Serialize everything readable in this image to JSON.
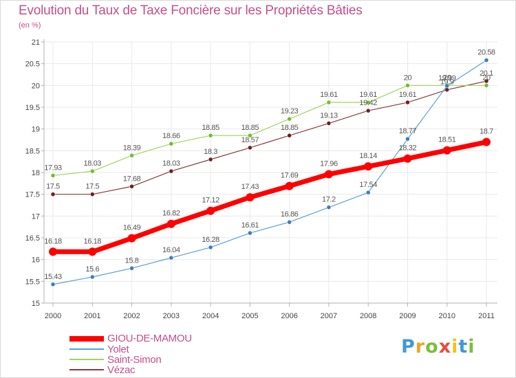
{
  "header": {
    "title": "Evolution du Taux de Taxe Foncière sur les Propriétés Bâties",
    "subtitle": "(en %)"
  },
  "brand": {
    "letters": [
      "P",
      "r",
      "o",
      "x",
      "i",
      "t",
      "i"
    ],
    "colors": [
      "#3f9ad6",
      "#f0a422",
      "#7bbf3a",
      "#e84c3d",
      "#f0c419",
      "#3f9ad6",
      "#7bbf3a"
    ]
  },
  "colors": {
    "text": "#c34f8b",
    "axis": "#b0b0b0",
    "grid": "#e8e8e8"
  },
  "chart_data": {
    "type": "line",
    "title": "Evolution du Taux de Taxe Foncière sur les Propriétés Bâties",
    "subtitle": "(en %)",
    "xlabel": "",
    "ylabel": "",
    "categories": [
      "2000",
      "2001",
      "2002",
      "2003",
      "2004",
      "2005",
      "2006",
      "2007",
      "2008",
      "2009",
      "2010",
      "2011"
    ],
    "ylim": [
      15,
      21
    ],
    "yticks": [
      15,
      15.5,
      16,
      16.5,
      17,
      17.5,
      18,
      18.5,
      19,
      19.5,
      20,
      20.5,
      21
    ],
    "grid": true,
    "legend_position": "bottom-left",
    "series": [
      {
        "name": "GIOU-DE-MAMOU",
        "color": "#ff0000",
        "width": 7,
        "marker": 6,
        "values": [
          16.18,
          16.18,
          16.49,
          16.82,
          17.12,
          17.43,
          17.69,
          17.96,
          18.14,
          18.32,
          18.51,
          18.7
        ],
        "labels": [
          "16.18",
          "16.18",
          "16.49",
          "16.82",
          "17.12",
          "17.43",
          "17.69",
          "17.96",
          "18.14",
          "18.32",
          "18.51",
          "18.7"
        ]
      },
      {
        "name": "Yolet",
        "color": "#5a9fd4",
        "marker_color": "#3b7cc0",
        "width": 1.2,
        "marker": 3,
        "values": [
          15.43,
          15.6,
          15.8,
          16.04,
          16.28,
          16.61,
          16.86,
          17.2,
          17.54,
          18.77,
          19.99,
          20.58
        ],
        "labels": [
          "15.43",
          "15.6",
          "15.8",
          "16.04",
          "16.28",
          "16.61",
          "16.86",
          "17.2",
          "17.54",
          "18.77",
          "19.99",
          "20.58"
        ]
      },
      {
        "name": "Saint-Simon",
        "color": "#9fd45a",
        "marker_color": "#6fbf2a",
        "width": 1.2,
        "marker": 3,
        "values": [
          17.93,
          18.03,
          18.39,
          18.66,
          18.85,
          18.85,
          19.23,
          19.61,
          19.61,
          20,
          20,
          20
        ],
        "labels": [
          "17.93",
          "18.03",
          "18.39",
          "18.66",
          "18.85",
          "18.85",
          "19.23",
          "19.61",
          "19.61",
          "20",
          "20",
          "20"
        ]
      },
      {
        "name": "Vézac",
        "color": "#8b3a3a",
        "marker_color": "#6b1f1f",
        "width": 1.2,
        "marker": 3,
        "values": [
          17.5,
          17.5,
          17.68,
          18.03,
          18.3,
          18.57,
          18.85,
          19.13,
          19.42,
          19.61,
          19.9,
          20.1
        ],
        "labels": [
          "17.5",
          "17.5",
          "17.68",
          "18.03",
          "18.3",
          "18.57",
          "18.85",
          "19.13",
          "19.42",
          "19.61",
          "19.9",
          "20.1"
        ]
      }
    ]
  }
}
